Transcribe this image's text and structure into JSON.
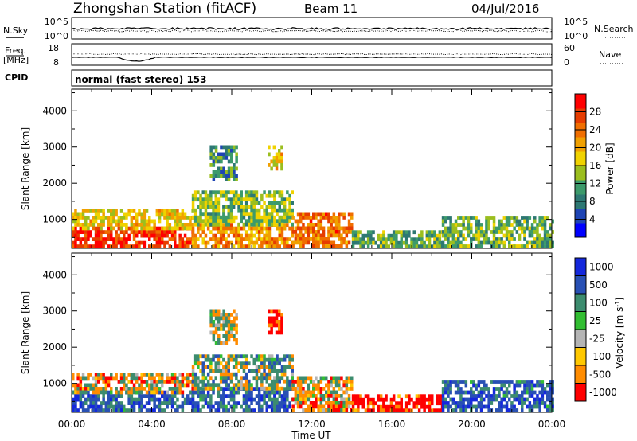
{
  "header": {
    "title": "Zhongshan Station (fitACF)",
    "beam": "Beam 11",
    "date": "04/Jul/2016"
  },
  "top_panel": {
    "left_label": "N.Sky",
    "left_ticks": [
      "10^5",
      "10^0"
    ],
    "right_ticks": [
      "10^5",
      "10^0"
    ],
    "right_label": "N.Search"
  },
  "freq_panel": {
    "left_label_1": "Freq.",
    "left_label_2": "[MHz]",
    "left_ticks": [
      "18",
      "8"
    ],
    "right_ticks": [
      "60",
      "0"
    ],
    "right_label": "Nave"
  },
  "cpid": {
    "label": "CPID",
    "text": "normal (fast stereo) 153"
  },
  "chart_data": [
    {
      "type": "heatmap",
      "quantity": "Power",
      "ylabel": "Slant Range [km]",
      "xlabel": "Time UT",
      "ylim": [
        200,
        4600
      ],
      "y_ticks": [
        "1000",
        "2000",
        "3000",
        "4000"
      ],
      "x_ticks": [
        "00:00",
        "04:00",
        "08:00",
        "12:00",
        "16:00",
        "20:00",
        "00:00"
      ],
      "colorbar": {
        "label": "Power [dB]",
        "range": [
          0,
          32
        ],
        "ticks": [
          "4",
          "8",
          "12",
          "16",
          "20",
          "24",
          "28"
        ],
        "colors": [
          "#0000ff",
          "#1e44b4",
          "#2d7873",
          "#3c9a6b",
          "#9bbe1e",
          "#f0d200",
          "#f0a000",
          "#f06e00",
          "#e63c00",
          "#ff0000"
        ]
      },
      "regions": [
        {
          "t": [
            0.0,
            6.0
          ],
          "r": [
            300,
            800
          ],
          "power": 28
        },
        {
          "t": [
            0.0,
            6.0
          ],
          "r": [
            800,
            1300
          ],
          "power": 18
        },
        {
          "t": [
            6.0,
            11.0
          ],
          "r": [
            300,
            900
          ],
          "power": 22
        },
        {
          "t": [
            6.0,
            11.0
          ],
          "r": [
            900,
            1800
          ],
          "power": 14
        },
        {
          "t": [
            6.9,
            8.2
          ],
          "r": [
            2100,
            3050
          ],
          "power": 10
        },
        {
          "t": [
            9.8,
            10.5
          ],
          "r": [
            2400,
            3050
          ],
          "power": 18
        },
        {
          "t": [
            11.0,
            14.0
          ],
          "r": [
            300,
            1200
          ],
          "power": 24
        },
        {
          "t": [
            14.0,
            18.5
          ],
          "r": [
            300,
            700
          ],
          "power": 12
        },
        {
          "t": [
            18.5,
            24.0
          ],
          "r": [
            300,
            1100
          ],
          "power": 12
        }
      ]
    },
    {
      "type": "heatmap",
      "quantity": "Velocity",
      "ylabel": "Slant Range [km]",
      "xlabel": "Time UT",
      "ylim": [
        200,
        4600
      ],
      "y_ticks": [
        "1000",
        "2000",
        "3000",
        "4000"
      ],
      "x_ticks": [
        "00:00",
        "04:00",
        "08:00",
        "12:00",
        "16:00",
        "20:00",
        "00:00"
      ],
      "colorbar": {
        "label": "Velocity [m s^-1]",
        "ticks": [
          "1000",
          "500",
          "100",
          "25",
          "-25",
          "-100",
          "-500",
          "-1000"
        ],
        "colors": [
          "#1428dc",
          "#2850b4",
          "#3c8c6e",
          "#32be32",
          "#b4b4b4",
          "#ffc800",
          "#ff8c00",
          "#ff0000"
        ]
      },
      "regions": [
        {
          "t": [
            0.0,
            6.0
          ],
          "r": [
            300,
            800
          ],
          "velocity": 500
        },
        {
          "t": [
            0.0,
            6.0
          ],
          "r": [
            800,
            1300
          ],
          "velocity": -100
        },
        {
          "t": [
            6.0,
            11.0
          ],
          "r": [
            300,
            900
          ],
          "velocity": 500
        },
        {
          "t": [
            6.0,
            11.0
          ],
          "r": [
            900,
            1800
          ],
          "velocity": 100
        },
        {
          "t": [
            6.9,
            8.2
          ],
          "r": [
            2100,
            3050
          ],
          "velocity": 0
        },
        {
          "t": [
            9.8,
            10.5
          ],
          "r": [
            2400,
            3050
          ],
          "velocity": -500
        },
        {
          "t": [
            11.0,
            14.0
          ],
          "r": [
            300,
            1200
          ],
          "velocity": -100
        },
        {
          "t": [
            14.0,
            18.5
          ],
          "r": [
            300,
            700
          ],
          "velocity": -500
        },
        {
          "t": [
            18.5,
            24.0
          ],
          "r": [
            300,
            1100
          ],
          "velocity": 500
        }
      ]
    }
  ]
}
